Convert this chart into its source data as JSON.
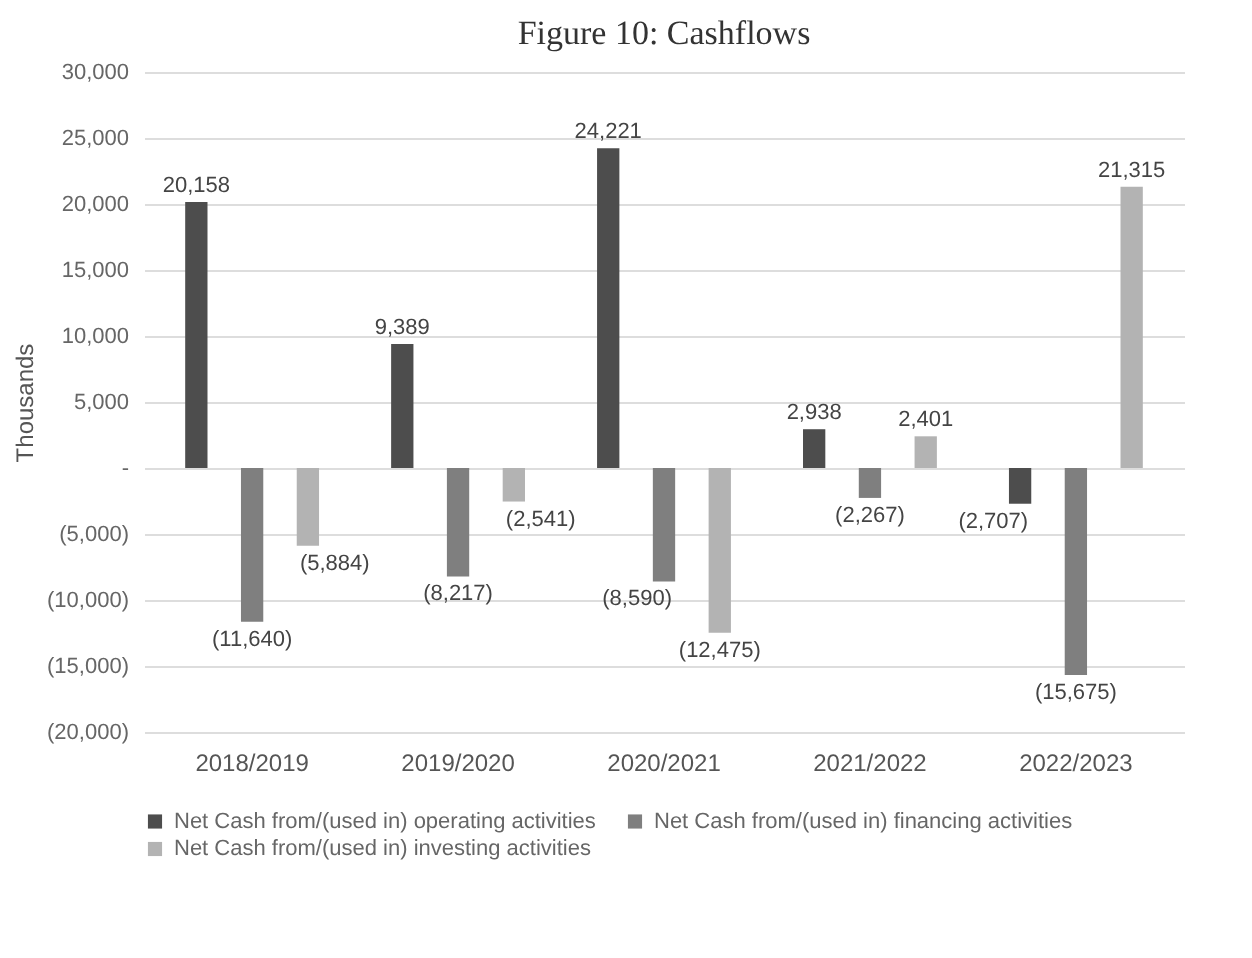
{
  "chart_data": {
    "type": "bar",
    "title": "Figure 10: Cashflows",
    "ylabel": "Thousands",
    "categories": [
      "2018/2019",
      "2019/2020",
      "2020/2021",
      "2021/2022",
      "2022/2023"
    ],
    "series": [
      {
        "name": "Net Cash from/(used in) operating activities",
        "color": "#4d4d4d",
        "values": [
          20158,
          9389,
          24221,
          2938,
          -2707
        ],
        "value_labels": [
          "20,158",
          "9,389",
          "24,221",
          "2,938",
          "(2,707)"
        ]
      },
      {
        "name": "Net Cash from/(used in) financing activities",
        "color": "#7f7f7f",
        "values": [
          -11640,
          -8217,
          -8590,
          -2267,
          -15675
        ],
        "value_labels": [
          "(11,640)",
          "(8,217)",
          "(8,590)",
          "(2,267)",
          "(15,675)"
        ]
      },
      {
        "name": "Net Cash from/(used in) investing activities",
        "color": "#b3b3b3",
        "values": [
          -5884,
          -2541,
          -12475,
          2401,
          21315
        ],
        "value_labels": [
          "(5,884)",
          "(2,541)",
          "(12,475)",
          "2,401",
          "21,315"
        ]
      }
    ],
    "ylim": [
      -20000,
      30000
    ],
    "yticks": [
      {
        "value": -20000,
        "label": "(20,000)"
      },
      {
        "value": -15000,
        "label": "(15,000)"
      },
      {
        "value": -10000,
        "label": "(10,000)"
      },
      {
        "value": -5000,
        "label": "(5,000)"
      },
      {
        "value": 0,
        "label": "-"
      },
      {
        "value": 5000,
        "label": "5,000"
      },
      {
        "value": 10000,
        "label": "10,000"
      },
      {
        "value": 15000,
        "label": "15,000"
      },
      {
        "value": 20000,
        "label": "20,000"
      },
      {
        "value": 25000,
        "label": "25,000"
      },
      {
        "value": 30000,
        "label": "30,000"
      }
    ],
    "grid": "y",
    "legend": "bottom"
  }
}
